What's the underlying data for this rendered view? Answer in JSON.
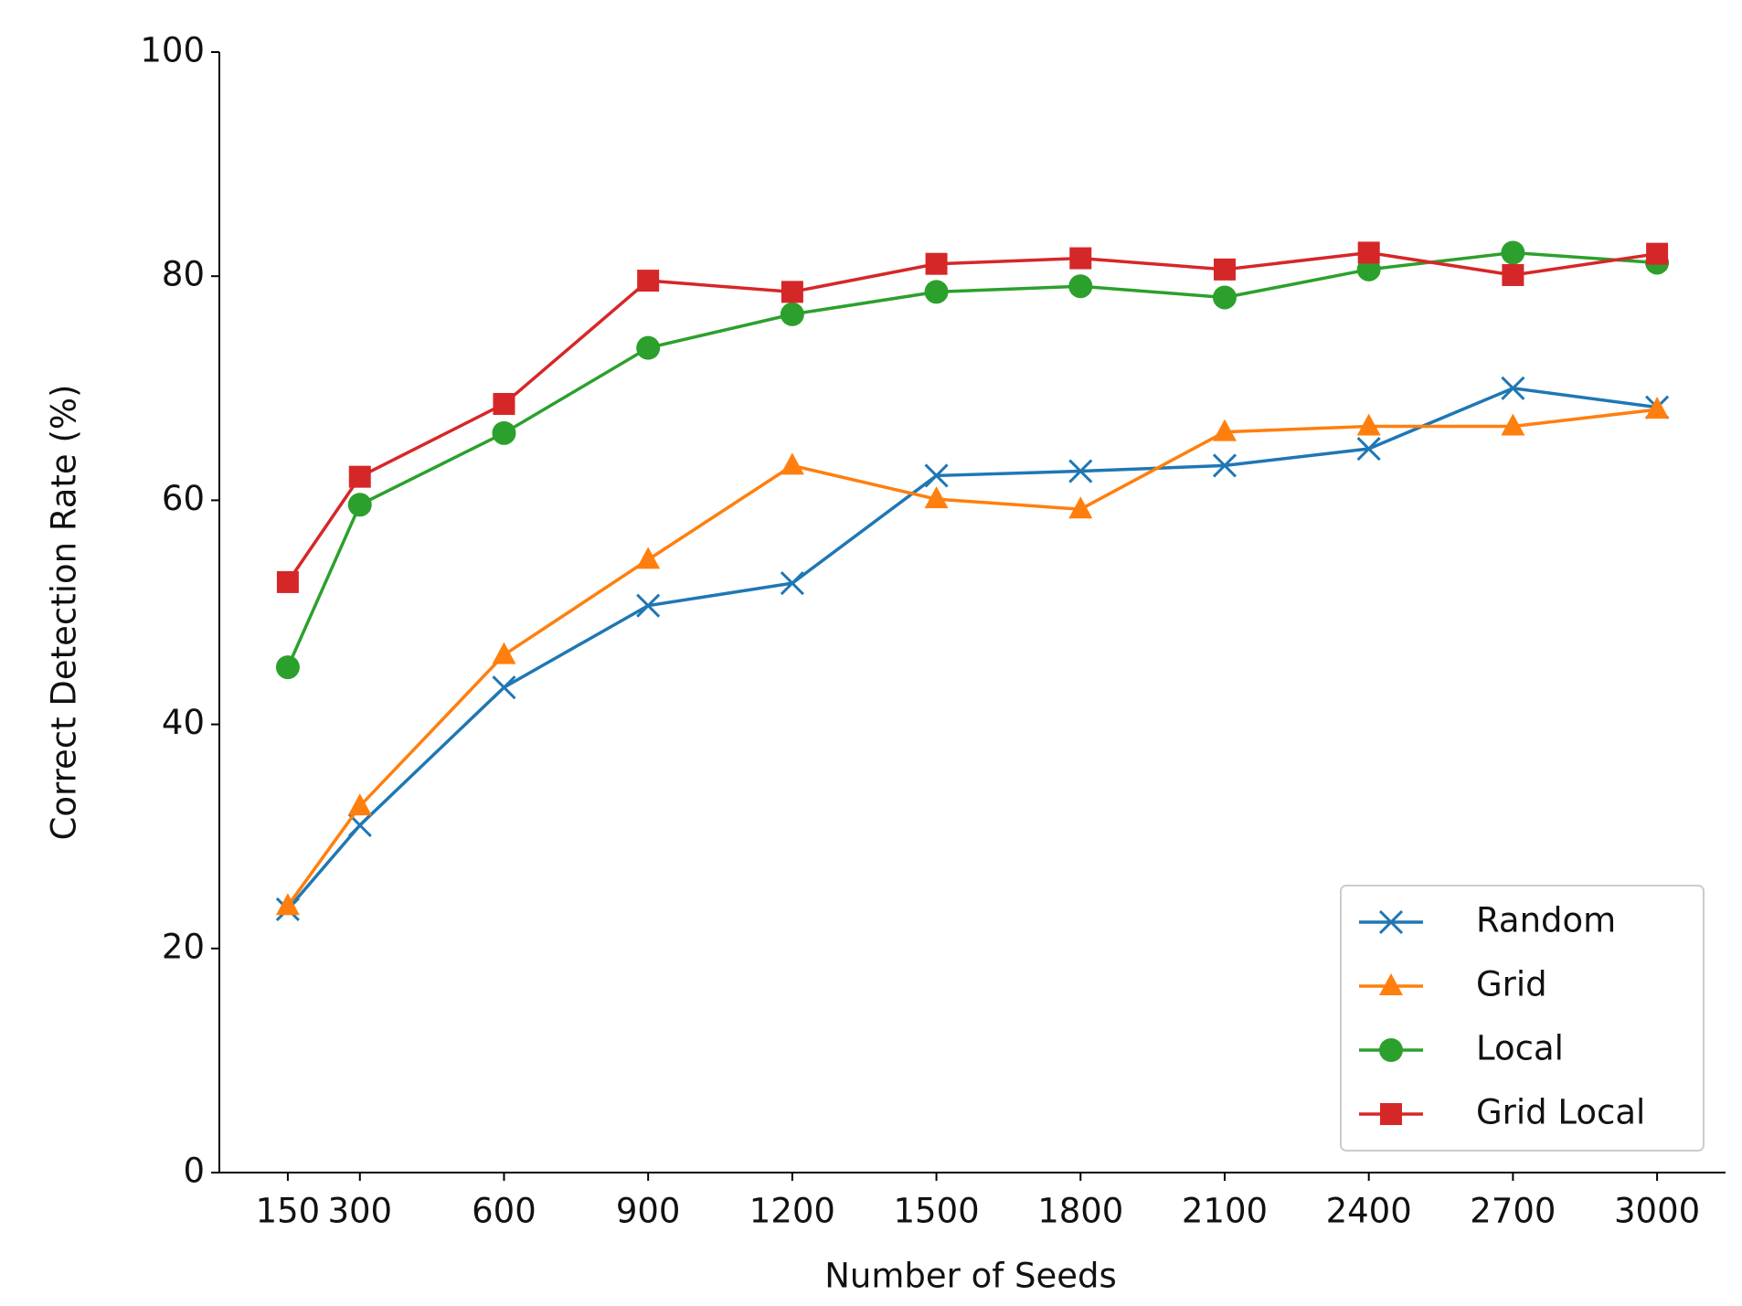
{
  "chart_data": {
    "type": "line",
    "x_label": "Number of Seeds",
    "y_label": "Correct Detection Rate (%)",
    "x": [
      150,
      300,
      600,
      900,
      1200,
      1500,
      1800,
      2100,
      2400,
      2700,
      3000
    ],
    "series": [
      {
        "name": "Random",
        "color": "#1f77b4",
        "marker": "x",
        "values": [
          23.5,
          31,
          43.3,
          50.6,
          52.6,
          62.2,
          62.6,
          63.1,
          64.6,
          70.0,
          68.3
        ]
      },
      {
        "name": "Grid",
        "color": "#ff7f0e",
        "marker": "triangle",
        "values": [
          23.8,
          32.7,
          46.2,
          54.7,
          63.1,
          60.1,
          59.2,
          66.1,
          66.6,
          66.6,
          68.1
        ]
      },
      {
        "name": "Local",
        "color": "#2ca02c",
        "marker": "circle",
        "values": [
          45.1,
          59.6,
          66.0,
          73.6,
          76.6,
          78.6,
          79.1,
          78.1,
          80.6,
          82.1,
          81.2
        ]
      },
      {
        "name": "Grid Local",
        "color": "#d62728",
        "marker": "square",
        "values": [
          52.7,
          62.1,
          68.6,
          79.6,
          78.6,
          81.1,
          81.6,
          80.6,
          82.1,
          80.1,
          82.0
        ]
      }
    ],
    "xlim": [
      7.5,
      3142.5
    ],
    "xticks": [
      150,
      300,
      600,
      900,
      1200,
      1500,
      1800,
      2100,
      2400,
      2700,
      3000
    ],
    "ylim": [
      0,
      100
    ],
    "yticks": [
      0,
      20,
      40,
      60,
      80,
      100
    ],
    "legend": "lower right"
  }
}
